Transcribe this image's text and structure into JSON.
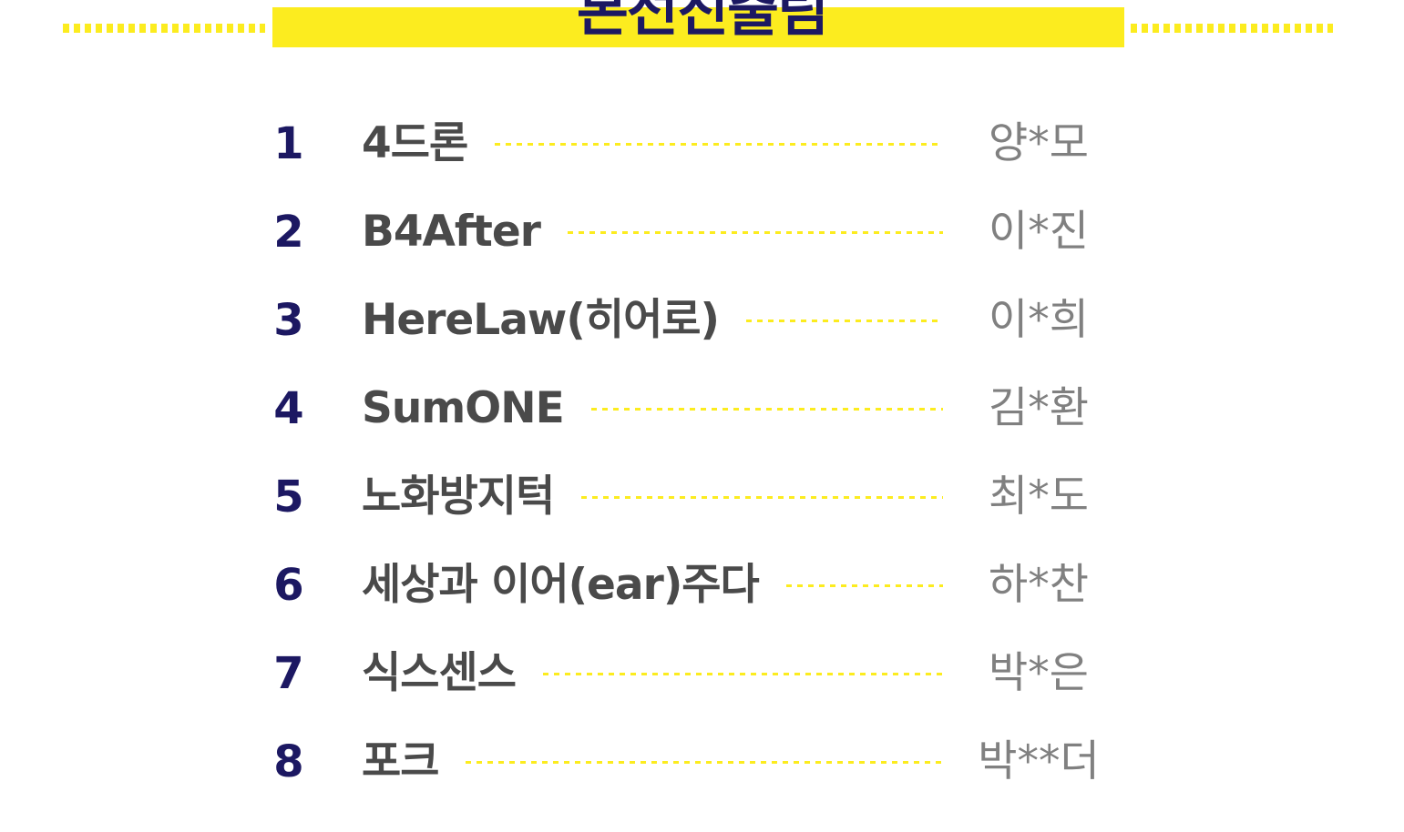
{
  "header": {
    "title": "본선진출팀",
    "accent_color": "#fcec1f",
    "title_color": "#1c1862"
  },
  "teams": [
    {
      "rank": "1",
      "name": "4드론",
      "member": "양*모"
    },
    {
      "rank": "2",
      "name": "B4After",
      "member": "이*진"
    },
    {
      "rank": "3",
      "name": "HereLaw(히어로)",
      "member": "이*희"
    },
    {
      "rank": "4",
      "name": "SumONE",
      "member": "김*환"
    },
    {
      "rank": "5",
      "name": "노화방지턱",
      "member": "최*도"
    },
    {
      "rank": "6",
      "name": "세상과 이어(ear)주다",
      "member": "하*찬"
    },
    {
      "rank": "7",
      "name": "식스센스",
      "member": "박*은"
    },
    {
      "rank": "8",
      "name": "포크",
      "member": "박**더"
    }
  ]
}
